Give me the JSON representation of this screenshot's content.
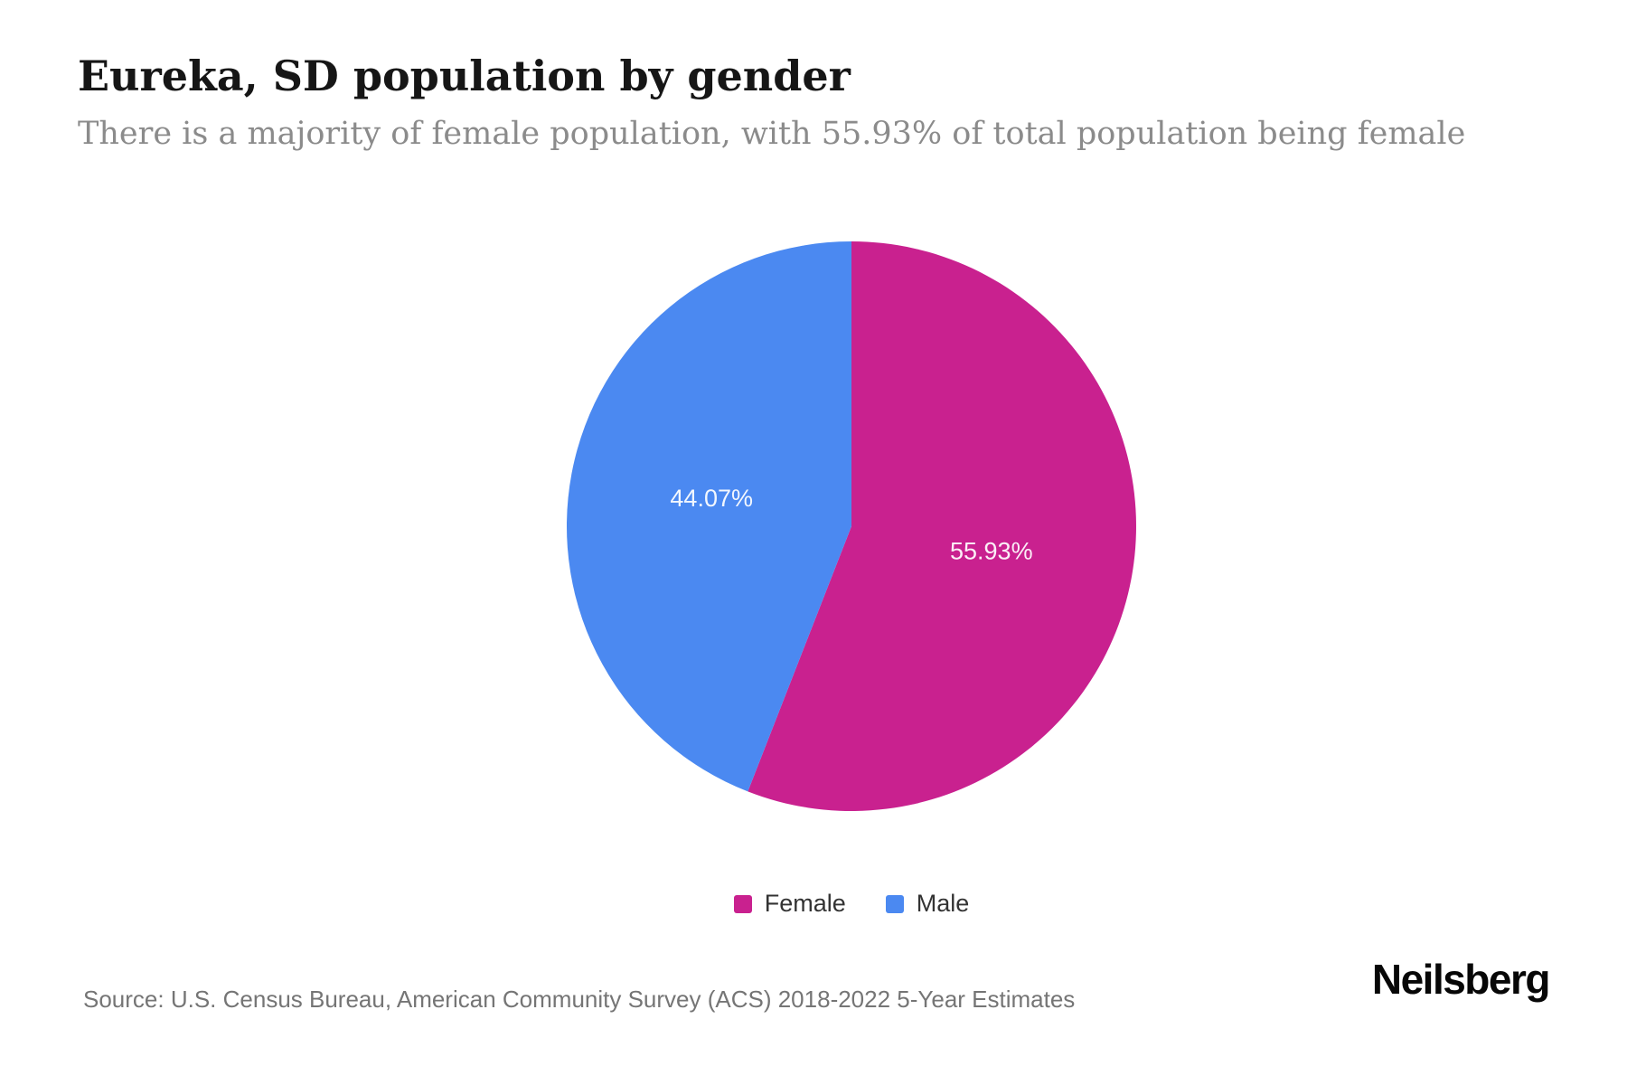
{
  "chart_data": {
    "type": "pie",
    "title": "Eureka, SD population by gender",
    "subtitle": "There is a majority of female population, with 55.93% of total population being female",
    "categories": [
      "Female",
      "Male"
    ],
    "values": [
      55.93,
      44.07
    ],
    "labels": [
      "55.93%",
      "44.07%"
    ],
    "colors": [
      "#c9218f",
      "#4b89f1"
    ],
    "unit": "%",
    "start_angle": 0,
    "direction": "clockwise",
    "label_radius_factor": 0.5,
    "legend_position": "bottom"
  },
  "footer": {
    "source": "Source: U.S. Census Bureau, American Community Survey (ACS) 2018-2022 5-Year Estimates",
    "brand": "Neilsberg"
  }
}
